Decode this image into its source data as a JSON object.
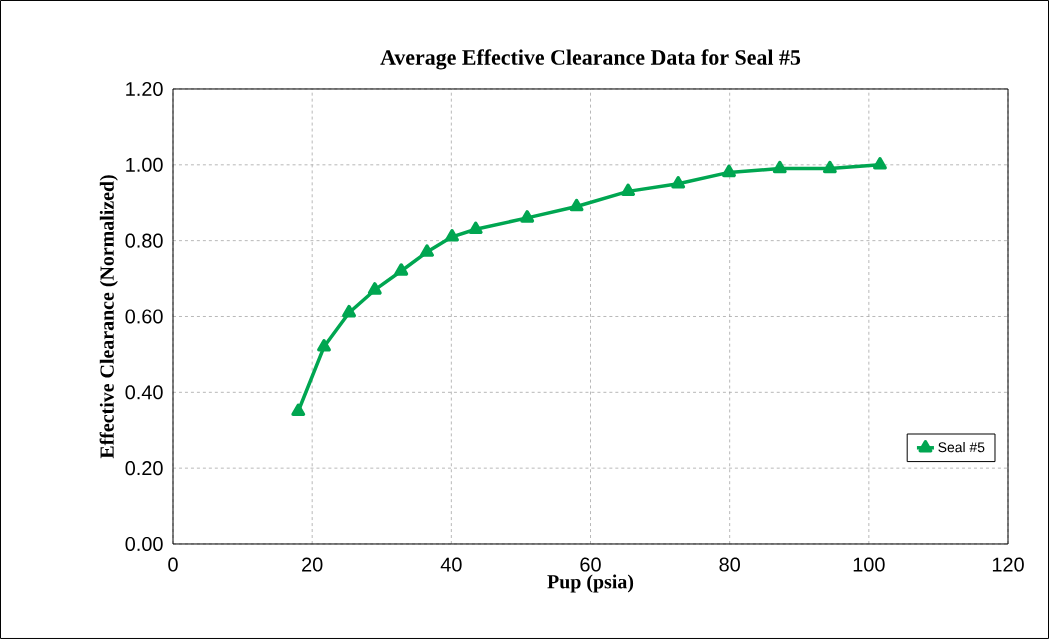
{
  "chart_data": {
    "type": "line",
    "title": "Average Effective Clearance Data for Seal #5",
    "xlabel": "Pup (psia)",
    "ylabel": "Effective Clearance (Normalized)",
    "x": [
      18,
      21.7,
      25.3,
      29,
      32.8,
      36.5,
      40.1,
      43.5,
      50.9,
      58,
      65.4,
      72.6,
      79.9,
      87.2,
      94.4,
      101.6
    ],
    "series": [
      {
        "name": "Seal #5",
        "color": "#00a651",
        "values": [
          0.35,
          0.52,
          0.61,
          0.67,
          0.72,
          0.77,
          0.81,
          0.83,
          0.86,
          0.89,
          0.93,
          0.95,
          0.98,
          0.99,
          0.99,
          1.0
        ]
      }
    ],
    "xlim": [
      0,
      120
    ],
    "xticks": [
      0,
      20,
      40,
      60,
      80,
      100,
      120
    ],
    "ylim": [
      0,
      1.2
    ],
    "yticks": [
      {
        "value": 0,
        "label": "0.00"
      },
      {
        "value": 0.2,
        "label": "0.20"
      },
      {
        "value": 0.4,
        "label": "0.40"
      },
      {
        "value": 0.6,
        "label": "0.60"
      },
      {
        "value": 0.8,
        "label": "0.80"
      },
      {
        "value": 1.0,
        "label": "1.00"
      },
      {
        "value": 1.2,
        "label": "1.20"
      }
    ],
    "grid": true,
    "legend": "bottom right",
    "marker": "triangle",
    "line_style": "solid"
  }
}
